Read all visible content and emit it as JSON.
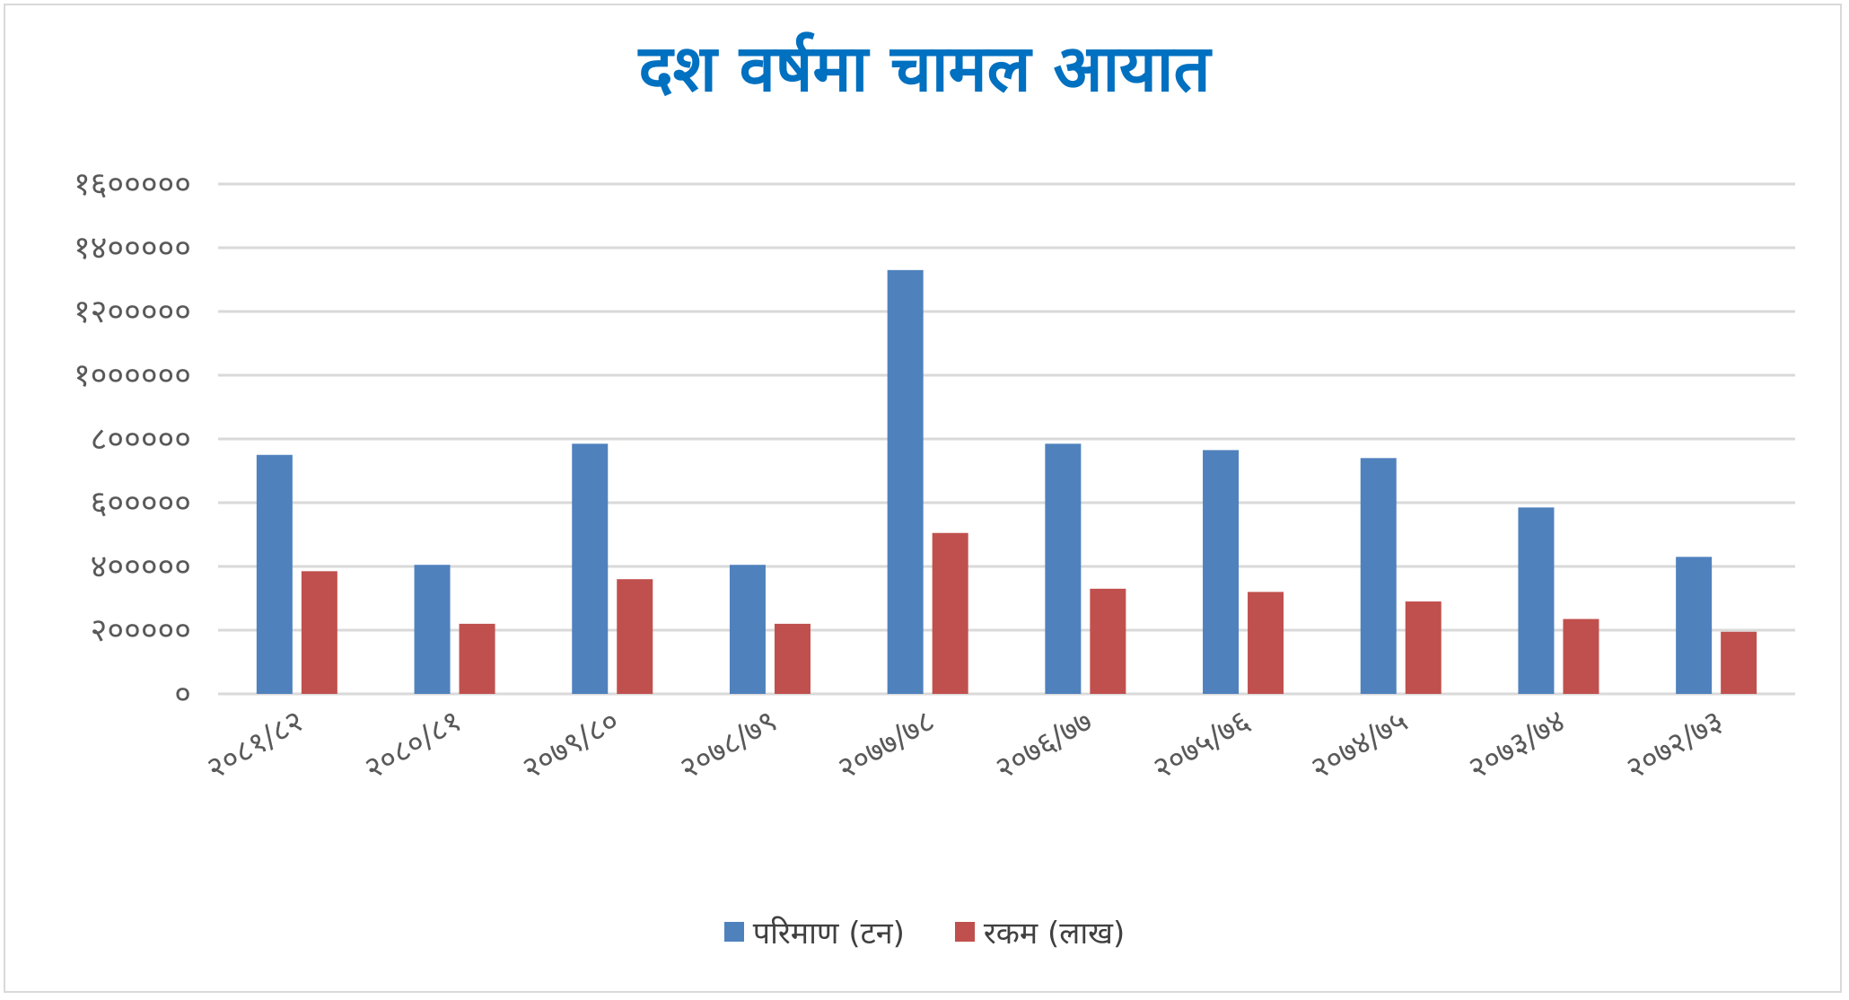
{
  "colors": {
    "title": "#0070c0",
    "series_1": "#4f81bd",
    "series_2": "#c0504d",
    "grid": "#d9d9d9",
    "axis_text": "#595959"
  },
  "chart_data": {
    "type": "bar",
    "title": "दश वर्षमा चामल आयात",
    "xlabel": "",
    "ylabel": "",
    "ylim": [
      0,
      1600000
    ],
    "y_ticks": [
      0,
      200000,
      400000,
      600000,
      800000,
      1000000,
      1200000,
      1400000,
      1600000
    ],
    "y_tick_labels": [
      "०",
      "२०००००",
      "४०००००",
      "६०००००",
      "८०००००",
      "१००००००",
      "१२०००००",
      "१४०००००",
      "१६०००००"
    ],
    "grid": true,
    "legend_position": "bottom",
    "categories": [
      "२०८१/८२",
      "२०८०/८१",
      "२०७९/८०",
      "२०७८/७९",
      "२०७७/७८",
      "२०७६/७७",
      "२०७५/७६",
      "२०७४/७५",
      "२०७३/७४",
      "२०७२/७३"
    ],
    "series": [
      {
        "name": "परिमाण (टन)",
        "values": [
          750000,
          405000,
          785000,
          405000,
          1330000,
          785000,
          765000,
          740000,
          585000,
          430000
        ]
      },
      {
        "name": "रकम (लाख)",
        "values": [
          385000,
          220000,
          360000,
          220000,
          505000,
          330000,
          320000,
          290000,
          235000,
          195000
        ]
      }
    ]
  }
}
